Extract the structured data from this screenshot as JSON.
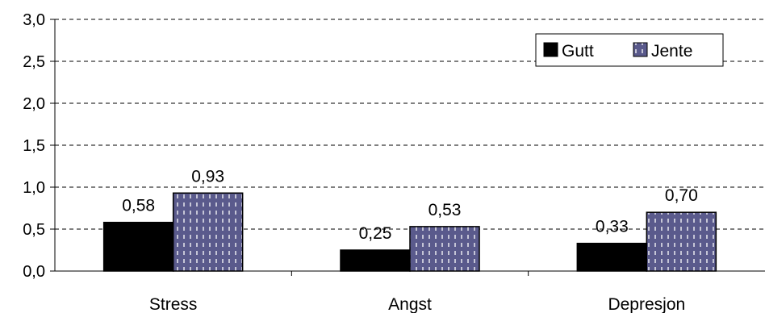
{
  "chart_data": {
    "type": "bar",
    "categories": [
      "Stress",
      "Angst",
      "Depresjon"
    ],
    "series": [
      {
        "name": "Gutt",
        "values": [
          0.58,
          0.25,
          0.33
        ],
        "labels": [
          "0,58",
          "0,25",
          "0,33"
        ],
        "color": "#000000"
      },
      {
        "name": "Jente",
        "values": [
          0.93,
          0.53,
          0.7
        ],
        "labels": [
          "0,93",
          "0,53",
          "0,70"
        ],
        "color": "#5a5a8c",
        "pattern": "dashed-white-lines"
      }
    ],
    "ylim": [
      0,
      3
    ],
    "yticks": [
      0,
      0.5,
      1.0,
      1.5,
      2.0,
      2.5,
      3.0
    ],
    "ytick_labels": [
      "0,0",
      "0,5",
      "1,0",
      "1,5",
      "2,0",
      "2,5",
      "3,0"
    ],
    "grid": "horizontal-dashed",
    "legend_position": "top-right",
    "title": "",
    "xlabel": "",
    "ylabel": ""
  }
}
